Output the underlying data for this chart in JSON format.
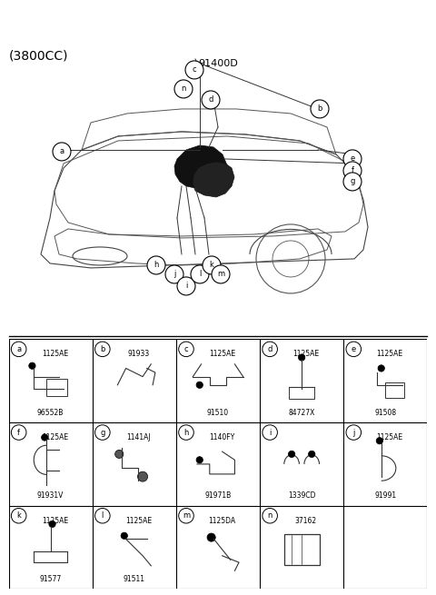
{
  "title_top": "(3800CC)",
  "main_label": "91400D",
  "background_color": "#ffffff",
  "border_color": "#000000",
  "grid_rows": 3,
  "grid_cols": 5,
  "cells": [
    {
      "id": "a",
      "row": 0,
      "col": 0,
      "label1": "1125AE",
      "label2": "96552B",
      "has_bracket": true,
      "bracket_type": "mount_a"
    },
    {
      "id": "b",
      "row": 0,
      "col": 1,
      "label1": "91933",
      "label2": "",
      "has_bracket": true,
      "bracket_type": "clip_b"
    },
    {
      "id": "c",
      "row": 0,
      "col": 2,
      "label1": "1125AE",
      "label2": "91510",
      "has_bracket": true,
      "bracket_type": "bracket_c"
    },
    {
      "id": "d",
      "row": 0,
      "col": 3,
      "label1": "1125AE",
      "label2": "84727X",
      "has_bracket": true,
      "bracket_type": "mount_d"
    },
    {
      "id": "e",
      "row": 0,
      "col": 4,
      "label1": "1125AE",
      "label2": "91508",
      "has_bracket": true,
      "bracket_type": "bracket_e"
    },
    {
      "id": "f",
      "row": 1,
      "col": 0,
      "label1": "1125AE",
      "label2": "91931V",
      "has_bracket": true,
      "bracket_type": "bracket_f"
    },
    {
      "id": "g",
      "row": 1,
      "col": 1,
      "label1": "1141AJ",
      "label2": "",
      "has_bracket": true,
      "bracket_type": "bolt_g"
    },
    {
      "id": "h",
      "row": 1,
      "col": 2,
      "label1": "1140FY",
      "label2": "91971B",
      "has_bracket": true,
      "bracket_type": "bracket_h"
    },
    {
      "id": "i",
      "row": 1,
      "col": 3,
      "label1": "",
      "label2": "1339CD",
      "has_bracket": true,
      "bracket_type": "clip_i"
    },
    {
      "id": "j",
      "row": 1,
      "col": 4,
      "label1": "1125AE",
      "label2": "91991",
      "has_bracket": true,
      "bracket_type": "bracket_j"
    },
    {
      "id": "k",
      "row": 2,
      "col": 0,
      "label1": "1125AE",
      "label2": "91577",
      "has_bracket": true,
      "bracket_type": "mount_k"
    },
    {
      "id": "l",
      "row": 2,
      "col": 1,
      "label1": "1125AE",
      "label2": "91511",
      "has_bracket": true,
      "bracket_type": "bracket_l"
    },
    {
      "id": "m",
      "row": 2,
      "col": 2,
      "label1": "1125DA",
      "label2": "",
      "has_bracket": true,
      "bracket_type": "bolt_m"
    },
    {
      "id": "n",
      "row": 2,
      "col": 3,
      "label1": "37162",
      "label2": "",
      "has_bracket": true,
      "bracket_type": "box_n"
    },
    {
      "id": "empty",
      "row": 2,
      "col": 4,
      "label1": "",
      "label2": "",
      "has_bracket": false,
      "bracket_type": "none"
    }
  ],
  "callout_letters": [
    "a",
    "b",
    "c",
    "d",
    "e",
    "f",
    "g",
    "h",
    "i",
    "j",
    "k",
    "l",
    "m",
    "n"
  ],
  "font_size_label": 7,
  "font_size_id": 7,
  "font_size_title": 9,
  "line_color": "#000000",
  "text_color": "#000000"
}
